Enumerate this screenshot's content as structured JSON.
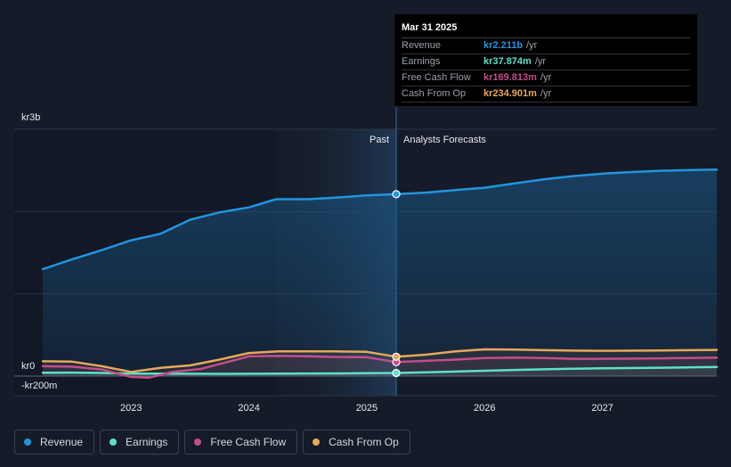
{
  "chart_data": {
    "type": "line",
    "currency_prefix": "kr",
    "y_ticks": [
      {
        "value": 3000,
        "label": "kr3b"
      },
      {
        "value": 0,
        "label": "kr0"
      },
      {
        "value": -200,
        "label": "-kr200m"
      }
    ],
    "ylim": [
      -200,
      3000
    ],
    "xlim": [
      2022.25,
      2027.97
    ],
    "x_ticks": [
      {
        "value": 2023,
        "label": "2023"
      },
      {
        "value": 2024,
        "label": "2024"
      },
      {
        "value": 2025,
        "label": "2025"
      },
      {
        "value": 2026,
        "label": "2026"
      },
      {
        "value": 2027,
        "label": "2027"
      }
    ],
    "past_label": "Past",
    "forecast_label": "Analysts Forecasts",
    "past_boundary": 2025.25,
    "past_shade_start": 2024.23,
    "series": [
      {
        "name": "Revenue",
        "color": "#2394df",
        "points": [
          [
            2022.25,
            1300
          ],
          [
            2022.5,
            1420
          ],
          [
            2022.75,
            1530
          ],
          [
            2023.0,
            1650
          ],
          [
            2023.25,
            1730
          ],
          [
            2023.5,
            1900
          ],
          [
            2023.75,
            1990
          ],
          [
            2024.0,
            2050
          ],
          [
            2024.23,
            2150
          ],
          [
            2024.5,
            2150
          ],
          [
            2024.75,
            2170
          ],
          [
            2025.0,
            2195
          ],
          [
            2025.25,
            2211
          ],
          [
            2025.5,
            2230
          ],
          [
            2025.75,
            2260
          ],
          [
            2026.0,
            2290
          ],
          [
            2026.25,
            2340
          ],
          [
            2026.5,
            2390
          ],
          [
            2026.75,
            2430
          ],
          [
            2027.0,
            2460
          ],
          [
            2027.25,
            2480
          ],
          [
            2027.5,
            2495
          ],
          [
            2027.97,
            2510
          ]
        ]
      },
      {
        "name": "Earnings",
        "color": "#5ee0c9",
        "points": [
          [
            2022.25,
            40
          ],
          [
            2022.5,
            42
          ],
          [
            2022.75,
            38
          ],
          [
            2023.0,
            30
          ],
          [
            2023.25,
            30
          ],
          [
            2023.5,
            28
          ],
          [
            2023.75,
            27
          ],
          [
            2024.0,
            28
          ],
          [
            2024.25,
            30
          ],
          [
            2024.5,
            31
          ],
          [
            2024.75,
            33
          ],
          [
            2025.0,
            35
          ],
          [
            2025.25,
            37.874
          ],
          [
            2025.5,
            45
          ],
          [
            2025.75,
            55
          ],
          [
            2026.0,
            65
          ],
          [
            2026.25,
            75
          ],
          [
            2026.5,
            82
          ],
          [
            2026.75,
            90
          ],
          [
            2027.0,
            95
          ],
          [
            2027.5,
            102
          ],
          [
            2027.97,
            110
          ]
        ]
      },
      {
        "name": "Free Cash Flow",
        "color": "#c44d8c",
        "points": [
          [
            2022.25,
            120
          ],
          [
            2022.5,
            115
          ],
          [
            2022.75,
            80
          ],
          [
            2023.0,
            -10
          ],
          [
            2023.15,
            -20
          ],
          [
            2023.35,
            50
          ],
          [
            2023.6,
            90
          ],
          [
            2024.0,
            240
          ],
          [
            2024.25,
            245
          ],
          [
            2024.5,
            240
          ],
          [
            2024.75,
            232
          ],
          [
            2025.0,
            230
          ],
          [
            2025.25,
            169.813
          ],
          [
            2025.5,
            185
          ],
          [
            2025.75,
            200
          ],
          [
            2026.0,
            220
          ],
          [
            2026.25,
            225
          ],
          [
            2026.5,
            220
          ],
          [
            2026.75,
            210
          ],
          [
            2027.0,
            210
          ],
          [
            2027.5,
            215
          ],
          [
            2027.97,
            225
          ]
        ]
      },
      {
        "name": "Cash From Op",
        "color": "#e6a85a",
        "points": [
          [
            2022.25,
            180
          ],
          [
            2022.5,
            175
          ],
          [
            2022.75,
            120
          ],
          [
            2023.0,
            50
          ],
          [
            2023.25,
            100
          ],
          [
            2023.5,
            130
          ],
          [
            2023.75,
            200
          ],
          [
            2024.0,
            280
          ],
          [
            2024.25,
            300
          ],
          [
            2024.5,
            300
          ],
          [
            2024.75,
            300
          ],
          [
            2025.0,
            295
          ],
          [
            2025.25,
            234.901
          ],
          [
            2025.5,
            260
          ],
          [
            2025.75,
            300
          ],
          [
            2026.0,
            325
          ],
          [
            2026.25,
            322
          ],
          [
            2026.5,
            315
          ],
          [
            2026.75,
            310
          ],
          [
            2027.0,
            308
          ],
          [
            2027.5,
            312
          ],
          [
            2027.97,
            318
          ]
        ]
      }
    ]
  },
  "tooltip": {
    "date": "Mar 31 2025",
    "rows": [
      {
        "label": "Revenue",
        "value": "kr2.211b",
        "unit": "/yr",
        "color": "#2394df"
      },
      {
        "label": "Earnings",
        "value": "kr37.874m",
        "unit": "/yr",
        "color": "#5ee0c9"
      },
      {
        "label": "Free Cash Flow",
        "value": "kr169.813m",
        "unit": "/yr",
        "color": "#c44d8c"
      },
      {
        "label": "Cash From Op",
        "value": "kr234.901m",
        "unit": "/yr",
        "color": "#e6a85a"
      }
    ]
  },
  "legend": [
    {
      "label": "Revenue",
      "color": "#2394df"
    },
    {
      "label": "Earnings",
      "color": "#5ee0c9"
    },
    {
      "label": "Free Cash Flow",
      "color": "#c44d8c"
    },
    {
      "label": "Cash From Op",
      "color": "#e6a85a"
    }
  ]
}
